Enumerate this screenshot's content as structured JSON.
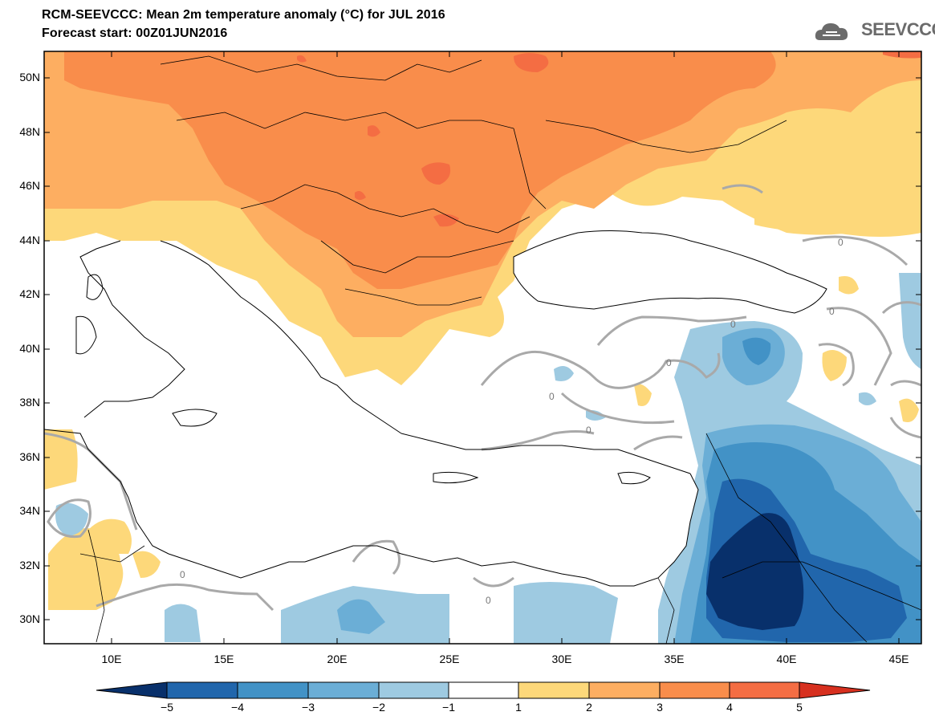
{
  "header": {
    "title": "RCM-SEEVCCC: Mean 2m temperature anomaly (°C) for JUL 2016",
    "subtitle": "Forecast start: 00Z01JUN2016",
    "logo_text": "SEEVCCC"
  },
  "map": {
    "lat_labels": [
      "50N",
      "48N",
      "46N",
      "44N",
      "42N",
      "40N",
      "38N",
      "36N",
      "34N",
      "32N",
      "30N"
    ],
    "lon_labels": [
      "10E",
      "15E",
      "20E",
      "25E",
      "30E",
      "35E",
      "40E",
      "45E"
    ],
    "contour_label": "0"
  },
  "colorbar": {
    "labels": [
      "−5",
      "−4",
      "−3",
      "−2",
      "−1",
      "1",
      "2",
      "3",
      "4",
      "5"
    ],
    "colors": [
      "#08306b",
      "#2166ac",
      "#4292c6",
      "#6baed6",
      "#9ecae1",
      "#ffffff",
      "#fdd87a",
      "#fdae61",
      "#f98d4b",
      "#f46d43",
      "#d7301f"
    ]
  },
  "palette": {
    "warm1": "#fdd87a",
    "warm2": "#fdae61",
    "warm3": "#f98d4b",
    "warm4": "#f46d43",
    "cold1": "#9ecae1",
    "cold2": "#6baed6",
    "cold3": "#4292c6",
    "cold4": "#2166ac",
    "cold5": "#08306b"
  }
}
